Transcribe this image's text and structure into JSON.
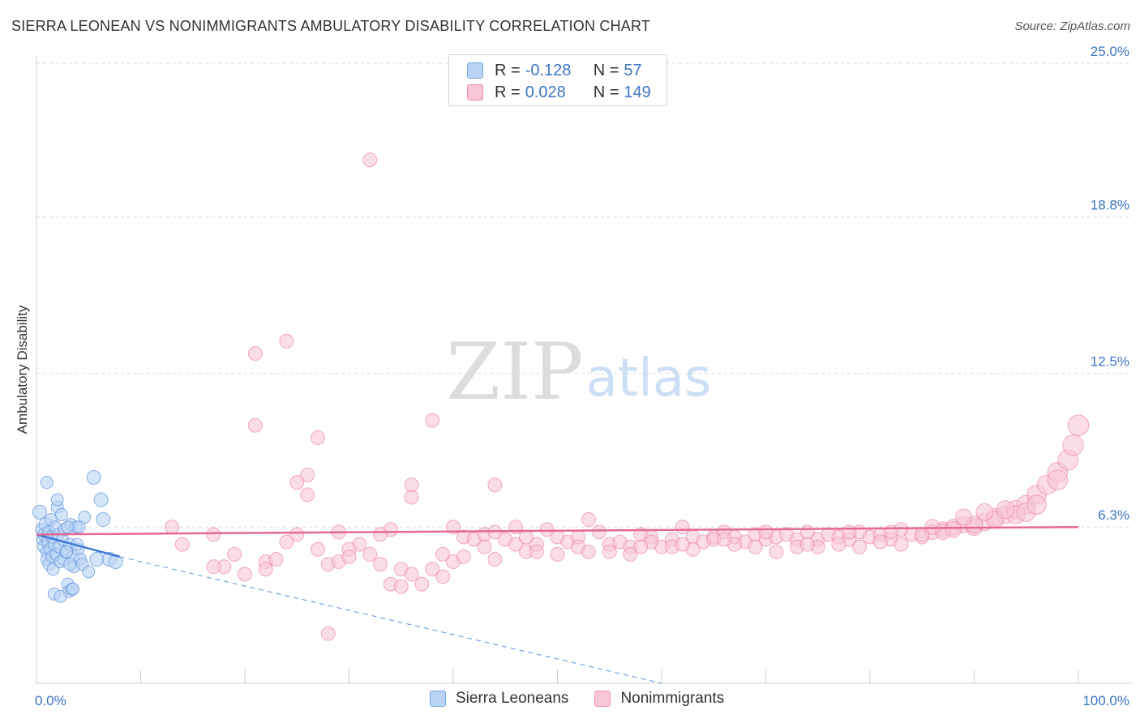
{
  "title": "SIERRA LEONEAN VS NONIMMIGRANTS AMBULATORY DISABILITY CORRELATION CHART",
  "source": "Source: ZipAtlas.com",
  "watermark": {
    "zip": "ZIP",
    "atlas": "atlas"
  },
  "legend_top": [
    {
      "r_label": "R =",
      "r_value": "-0.128",
      "n_label": "N =",
      "n_value": "57"
    },
    {
      "r_label": "R =",
      "r_value": "0.028",
      "n_label": "N =",
      "n_value": "149"
    }
  ],
  "legend_bottom": [
    "Sierra Leoneans",
    "Nonimmigrants"
  ],
  "colors": {
    "blue": "#5b92dc",
    "blue_fill": "#b9d3f5",
    "pink": "#ea6f98",
    "pink_fill": "#f9c6d6",
    "tick_label": "#3b75c4"
  },
  "chart_data": {
    "type": "scatter",
    "xlabel": "",
    "ylabel": "Ambulatory Disability",
    "xlim": [
      0,
      100
    ],
    "ylim": [
      0,
      25.0
    ],
    "x_tick_labels": [
      {
        "value": 0,
        "label": "0.0%"
      },
      {
        "value": 100,
        "label": "100.0%"
      }
    ],
    "y_ticks": [
      {
        "value": 6.3,
        "label": "6.3%"
      },
      {
        "value": 12.5,
        "label": "12.5%"
      },
      {
        "value": 18.8,
        "label": "18.8%"
      },
      {
        "value": 25.0,
        "label": "25.0%"
      }
    ],
    "grid": true,
    "series": [
      {
        "name": "Sierra Leoneans",
        "color": "#5b92dc",
        "trend": {
          "x": [
            0,
            8
          ],
          "y": [
            6.0,
            5.1
          ],
          "dashed_extension_to": [
            60,
            0
          ]
        },
        "points": [
          [
            0.3,
            6.9
          ],
          [
            0.5,
            6.2
          ],
          [
            0.6,
            5.8
          ],
          [
            0.7,
            5.5
          ],
          [
            0.8,
            6.0
          ],
          [
            0.9,
            6.4
          ],
          [
            1.0,
            5.3
          ],
          [
            1.0,
            5.0
          ],
          [
            1.1,
            5.7
          ],
          [
            1.2,
            4.8
          ],
          [
            1.2,
            6.1
          ],
          [
            1.3,
            5.4
          ],
          [
            1.4,
            6.6
          ],
          [
            1.5,
            5.9
          ],
          [
            1.5,
            5.1
          ],
          [
            1.6,
            4.6
          ],
          [
            1.7,
            5.6
          ],
          [
            1.8,
            6.3
          ],
          [
            1.9,
            5.2
          ],
          [
            2.0,
            7.1
          ],
          [
            2.1,
            6.0
          ],
          [
            2.2,
            5.5
          ],
          [
            2.3,
            4.9
          ],
          [
            2.4,
            6.8
          ],
          [
            2.5,
            5.8
          ],
          [
            2.6,
            5.0
          ],
          [
            2.7,
            6.2
          ],
          [
            2.8,
            5.3
          ],
          [
            3.0,
            4.0
          ],
          [
            3.1,
            3.7
          ],
          [
            3.2,
            5.6
          ],
          [
            3.3,
            6.4
          ],
          [
            3.5,
            5.1
          ],
          [
            3.6,
            4.7
          ],
          [
            3.8,
            6.3
          ],
          [
            4.0,
            5.4
          ],
          [
            4.2,
            5.0
          ],
          [
            4.4,
            4.8
          ],
          [
            4.6,
            6.7
          ],
          [
            5.0,
            4.5
          ],
          [
            1.0,
            8.1
          ],
          [
            2.0,
            7.4
          ],
          [
            3.4,
            3.8
          ],
          [
            3.0,
            6.3
          ],
          [
            4.1,
            6.3
          ],
          [
            3.9,
            5.6
          ],
          [
            2.9,
            5.3
          ],
          [
            1.7,
            3.6
          ],
          [
            2.3,
            3.5
          ],
          [
            3.5,
            3.8
          ],
          [
            3.2,
            4.8
          ],
          [
            5.5,
            8.3
          ],
          [
            6.2,
            7.4
          ],
          [
            6.4,
            6.6
          ],
          [
            5.8,
            5.0
          ],
          [
            7.0,
            5.0
          ],
          [
            7.6,
            4.9
          ]
        ],
        "sizes": [
          7,
          6,
          6,
          6,
          7,
          7,
          6,
          6,
          6,
          6,
          6,
          6,
          6,
          6,
          6,
          6,
          6,
          6,
          6,
          6,
          6,
          6,
          6,
          6,
          6,
          6,
          6,
          6,
          6,
          6,
          6,
          6,
          6,
          6,
          6,
          6,
          6,
          6,
          6,
          6,
          6,
          6,
          6,
          6,
          6,
          6,
          6,
          6,
          6,
          6,
          6,
          7,
          7,
          7,
          7,
          7,
          7
        ]
      },
      {
        "name": "Nonimmigrants",
        "color": "#ea6f98",
        "trend": {
          "x": [
            0,
            100
          ],
          "y": [
            6.0,
            6.3
          ]
        },
        "points": [
          [
            32,
            21.1
          ],
          [
            21,
            13.3
          ],
          [
            24,
            13.8
          ],
          [
            21,
            10.4
          ],
          [
            27,
            9.9
          ],
          [
            38,
            10.6
          ],
          [
            36,
            8.0
          ],
          [
            44,
            8.0
          ],
          [
            26,
            8.4
          ],
          [
            25,
            8.1
          ],
          [
            26,
            7.6
          ],
          [
            29,
            6.1
          ],
          [
            25,
            6.0
          ],
          [
            17,
            6.0
          ],
          [
            40,
            6.3
          ],
          [
            41,
            5.9
          ],
          [
            34,
            6.2
          ],
          [
            33,
            6.0
          ],
          [
            24,
            5.7
          ],
          [
            27,
            5.4
          ],
          [
            28,
            4.8
          ],
          [
            29,
            4.9
          ],
          [
            18,
            4.7
          ],
          [
            22,
            4.9
          ],
          [
            20,
            4.4
          ],
          [
            22,
            4.6
          ],
          [
            31,
            5.6
          ],
          [
            30,
            5.4
          ],
          [
            30,
            5.1
          ],
          [
            32,
            5.2
          ],
          [
            33,
            4.8
          ],
          [
            34,
            4.0
          ],
          [
            35,
            4.6
          ],
          [
            36,
            4.4
          ],
          [
            37,
            4.0
          ],
          [
            38,
            4.6
          ],
          [
            39,
            5.2
          ],
          [
            40,
            4.9
          ],
          [
            41,
            5.1
          ],
          [
            42,
            5.8
          ],
          [
            43,
            6.0
          ],
          [
            44,
            6.1
          ],
          [
            45,
            5.8
          ],
          [
            46,
            5.6
          ],
          [
            47,
            5.3
          ],
          [
            48,
            5.6
          ],
          [
            49,
            6.2
          ],
          [
            50,
            5.9
          ],
          [
            51,
            5.7
          ],
          [
            52,
            5.9
          ],
          [
            53,
            6.6
          ],
          [
            54,
            6.1
          ],
          [
            55,
            5.6
          ],
          [
            56,
            5.7
          ],
          [
            57,
            5.5
          ],
          [
            58,
            6.0
          ],
          [
            59,
            5.9
          ],
          [
            60,
            5.5
          ],
          [
            61,
            5.8
          ],
          [
            62,
            6.3
          ],
          [
            63,
            5.9
          ],
          [
            64,
            5.7
          ],
          [
            65,
            5.9
          ],
          [
            66,
            6.1
          ],
          [
            67,
            5.9
          ],
          [
            68,
            5.7
          ],
          [
            69,
            6.0
          ],
          [
            70,
            5.8
          ],
          [
            71,
            5.9
          ],
          [
            72,
            6.0
          ],
          [
            73,
            5.8
          ],
          [
            74,
            6.1
          ],
          [
            75,
            5.8
          ],
          [
            76,
            6.0
          ],
          [
            77,
            5.9
          ],
          [
            78,
            5.8
          ],
          [
            79,
            6.1
          ],
          [
            80,
            5.9
          ],
          [
            81,
            6.0
          ],
          [
            82,
            5.8
          ],
          [
            83,
            6.2
          ],
          [
            84,
            6.0
          ],
          [
            85,
            5.9
          ],
          [
            86,
            6.1
          ],
          [
            87,
            6.2
          ],
          [
            88,
            6.3
          ],
          [
            89,
            6.4
          ],
          [
            90,
            6.3
          ],
          [
            91,
            6.5
          ],
          [
            92,
            6.7
          ],
          [
            93,
            6.8
          ],
          [
            94,
            7.0
          ],
          [
            95,
            7.2
          ],
          [
            96,
            7.6
          ],
          [
            97,
            8.0
          ],
          [
            98,
            8.5
          ],
          [
            99,
            9.0
          ],
          [
            99.5,
            9.6
          ],
          [
            100,
            10.4
          ],
          [
            14,
            5.6
          ],
          [
            17,
            4.7
          ],
          [
            19,
            5.2
          ],
          [
            23,
            5.0
          ],
          [
            35,
            3.9
          ],
          [
            39,
            4.3
          ],
          [
            43,
            5.5
          ],
          [
            46,
            6.3
          ],
          [
            48,
            5.3
          ],
          [
            50,
            5.2
          ],
          [
            52,
            5.5
          ],
          [
            55,
            5.3
          ],
          [
            57,
            5.2
          ],
          [
            59,
            5.7
          ],
          [
            61,
            5.5
          ],
          [
            63,
            5.4
          ],
          [
            65,
            5.8
          ],
          [
            67,
            5.6
          ],
          [
            69,
            5.5
          ],
          [
            71,
            5.3
          ],
          [
            73,
            5.5
          ],
          [
            75,
            5.5
          ],
          [
            77,
            5.6
          ],
          [
            79,
            5.5
          ],
          [
            81,
            5.7
          ],
          [
            83,
            5.6
          ],
          [
            85,
            6.0
          ],
          [
            87,
            6.1
          ],
          [
            88,
            6.2
          ],
          [
            90,
            6.4
          ],
          [
            92,
            6.6
          ],
          [
            94,
            6.8
          ],
          [
            95,
            6.9
          ],
          [
            96,
            7.2
          ],
          [
            98,
            8.2
          ],
          [
            36,
            7.5
          ],
          [
            47,
            5.9
          ],
          [
            44,
            5.0
          ],
          [
            53,
            5.3
          ],
          [
            58,
            5.5
          ],
          [
            62,
            5.6
          ],
          [
            66,
            5.8
          ],
          [
            70,
            6.1
          ],
          [
            74,
            5.6
          ],
          [
            78,
            6.1
          ],
          [
            82,
            6.1
          ],
          [
            86,
            6.3
          ],
          [
            89,
            6.7
          ],
          [
            91,
            6.9
          ],
          [
            93,
            7.0
          ],
          [
            28,
            2.0
          ],
          [
            13,
            6.3
          ]
        ]
      }
    ]
  }
}
